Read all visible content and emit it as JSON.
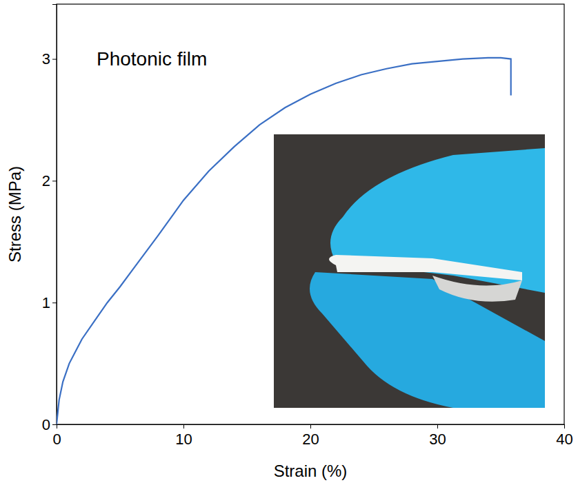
{
  "chart_data": {
    "type": "line",
    "annotation": "Photonic film",
    "x_label": "Strain (%)",
    "y_label": "Stress (MPa)",
    "x": [
      0,
      0.2,
      0.5,
      1,
      2,
      3,
      4,
      5,
      6,
      8,
      10,
      12,
      14,
      16,
      18,
      20,
      22,
      24,
      26,
      28,
      30,
      32,
      34,
      35,
      35.8,
      35.8
    ],
    "series": [
      {
        "name": "Photonic film",
        "color": "#3a6fc4",
        "values": [
          0,
          0.2,
          0.35,
          0.5,
          0.7,
          0.85,
          1.0,
          1.13,
          1.27,
          1.55,
          1.84,
          2.08,
          2.28,
          2.46,
          2.6,
          2.71,
          2.8,
          2.87,
          2.92,
          2.96,
          2.98,
          3.0,
          3.01,
          3.01,
          3.0,
          2.7
        ]
      }
    ],
    "xlim": [
      0,
      40
    ],
    "ylim": [
      0,
      3.45
    ],
    "xticks": [
      0,
      10,
      20,
      30,
      40
    ],
    "yticks": [
      0,
      1,
      2,
      3
    ],
    "grid": false
  }
}
